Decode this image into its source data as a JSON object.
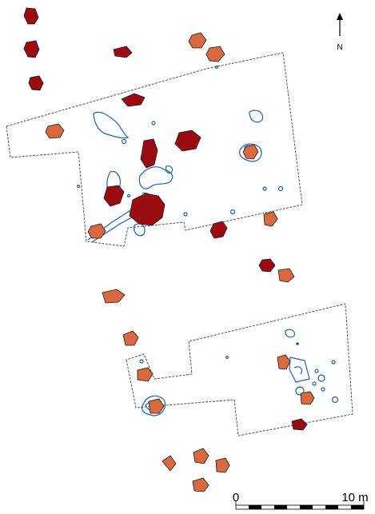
{
  "north_arrow": {
    "label": "N"
  },
  "scale_bar": {
    "start_label": "0",
    "end_label": "10 m"
  },
  "colors": {
    "pit_dark": "#9a0b12",
    "pit_light": "#d9693f",
    "outline": "#1a1a1a",
    "feature": "#1f5fb0",
    "boundary": "#555555"
  }
}
